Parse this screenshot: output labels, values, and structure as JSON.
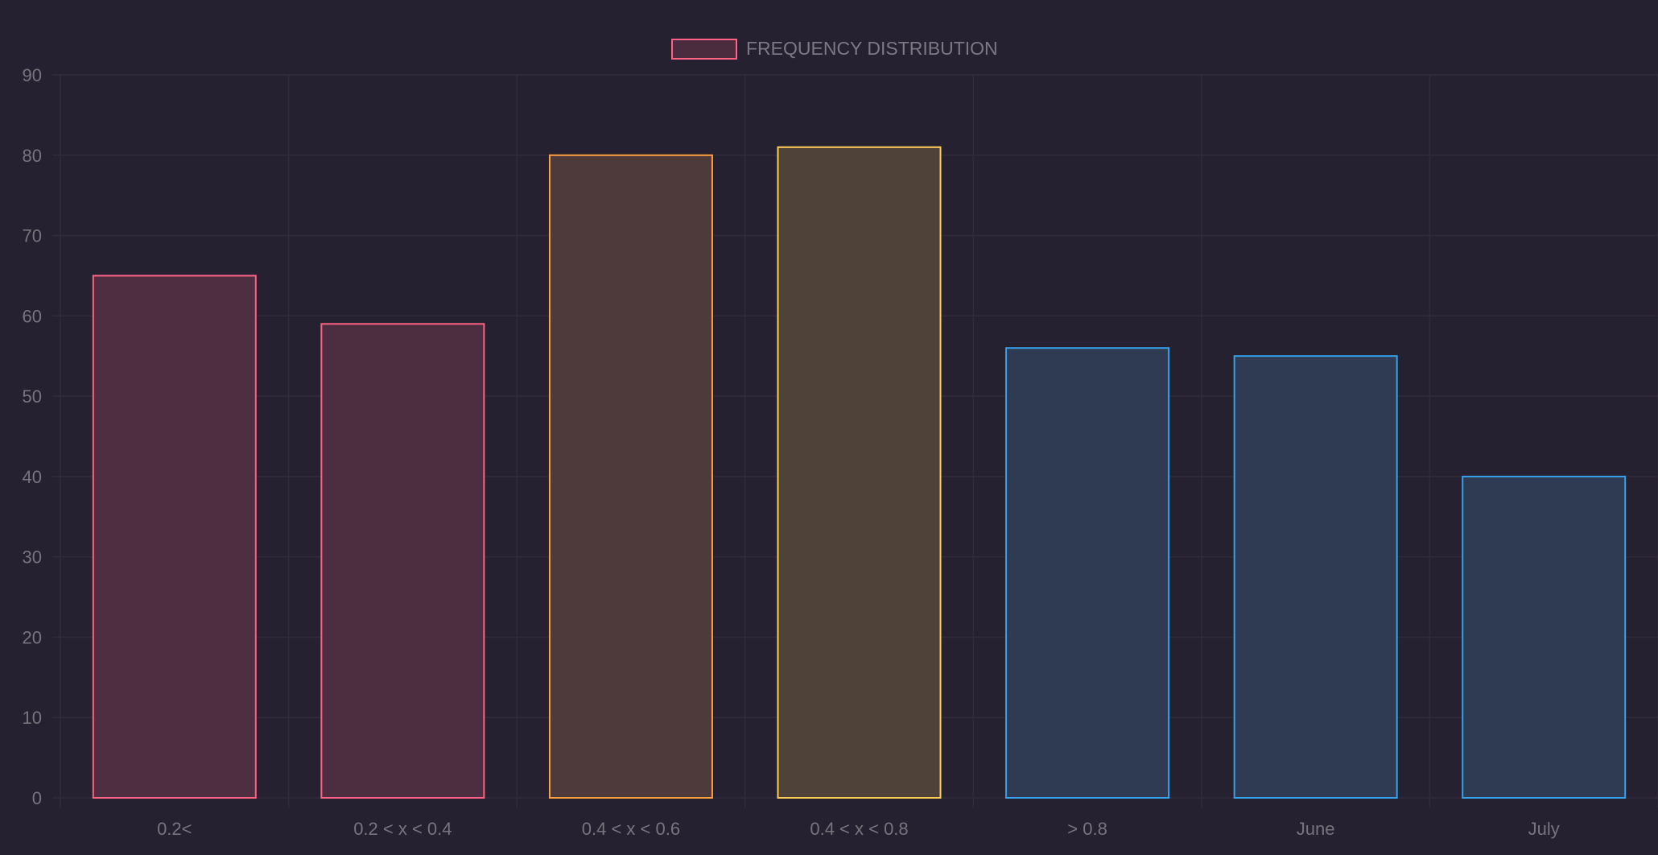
{
  "chart_data": {
    "type": "bar",
    "categories": [
      "0.2<",
      "0.2 < x < 0.4",
      "0.4 < x < 0.6",
      "0.4 < x < 0.8",
      "> 0.8",
      "June",
      "July"
    ],
    "series": [
      {
        "name": "FREQUENCY DISTRIBUTION",
        "values": [
          65,
          59,
          80,
          81,
          56,
          55,
          40
        ]
      }
    ],
    "bar_colors": {
      "border": [
        "#ff6384",
        "#ff6384",
        "#ff9f40",
        "#ffcd56",
        "#36a2eb",
        "#36a2eb",
        "#36a2eb"
      ],
      "fill": [
        "#502e41",
        "#4d2e41",
        "#4e3a3a",
        "#4e4239",
        "#2f3a53",
        "#2f3a53",
        "#2f3a53"
      ]
    },
    "ylim": [
      0,
      90
    ],
    "yticks": [
      0,
      10,
      20,
      30,
      40,
      50,
      60,
      70,
      80,
      90
    ],
    "grid": true,
    "legend_position": "top-center",
    "legend_color": "#ff6384",
    "legend_fill": "#4a2c3e",
    "title": "",
    "xlabel": "",
    "ylabel": ""
  }
}
